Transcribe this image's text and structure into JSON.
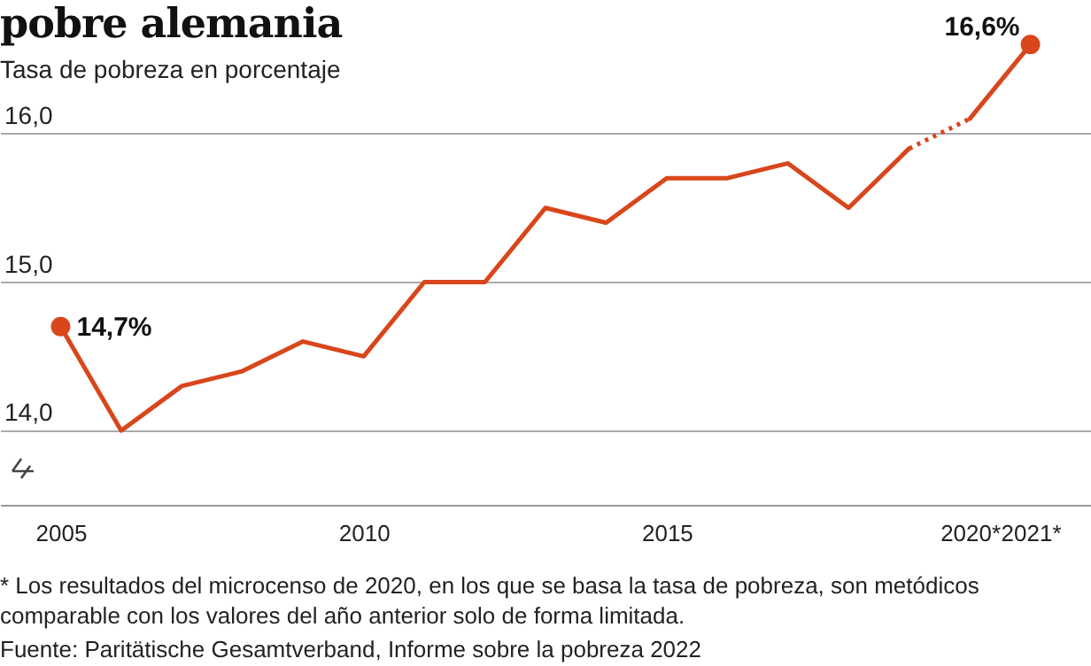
{
  "chart_data": {
    "type": "line",
    "title": "pobre alemania",
    "subtitle": "Tasa de pobreza en porcentaje",
    "xlim": [
      2004,
      2022
    ],
    "xticks": [
      2005,
      2010,
      2015,
      {
        "value": 2020,
        "label": "2020*"
      },
      {
        "value": 2021,
        "label": "2021*"
      }
    ],
    "ylim": [
      13.5,
      16.9
    ],
    "yticks": [
      {
        "value": 14,
        "label": "14,0"
      },
      {
        "value": 15,
        "label": "15,0"
      },
      {
        "value": 16,
        "label": "16,0"
      }
    ],
    "grid": "y",
    "series": [
      {
        "color": "#d8461b",
        "line_style": "solid",
        "x": [
          2005,
          2006,
          2007,
          2008,
          2009,
          2010,
          2011,
          2012,
          2013,
          2014,
          2015,
          2016,
          2017,
          2018,
          2019
        ],
        "values": [
          14.7,
          14.0,
          14.3,
          14.4,
          14.6,
          14.5,
          15.0,
          15.0,
          15.5,
          15.4,
          15.7,
          15.7,
          15.8,
          15.5,
          15.9
        ]
      },
      {
        "color": "#d8461b",
        "line_style": "dotted",
        "x": [
          2019,
          2020
        ],
        "values": [
          15.9,
          16.1
        ]
      },
      {
        "color": "#d8461b",
        "line_style": "solid",
        "x": [
          2020,
          2021
        ],
        "values": [
          16.1,
          16.6
        ]
      },
      {
        "type": "scatter",
        "color": "#d8461b",
        "marker": "circle",
        "x": [
          2005,
          2021
        ],
        "values": [
          14.7,
          16.6
        ]
      }
    ],
    "annotations": [
      {
        "text": "14,7%",
        "x": 2005,
        "y": 14.7
      },
      {
        "text": "16,6%",
        "x": 2021,
        "y": 16.6
      },
      "* Los resultados del microcenso de 2020, en los que se basa la tasa de pobreza, son metódicos comparable con los valores del año anterior solo de forma limitada.",
      "Fuente: Paritätische Gesamtverband, Informe sobre la pobreza 2022"
    ]
  }
}
